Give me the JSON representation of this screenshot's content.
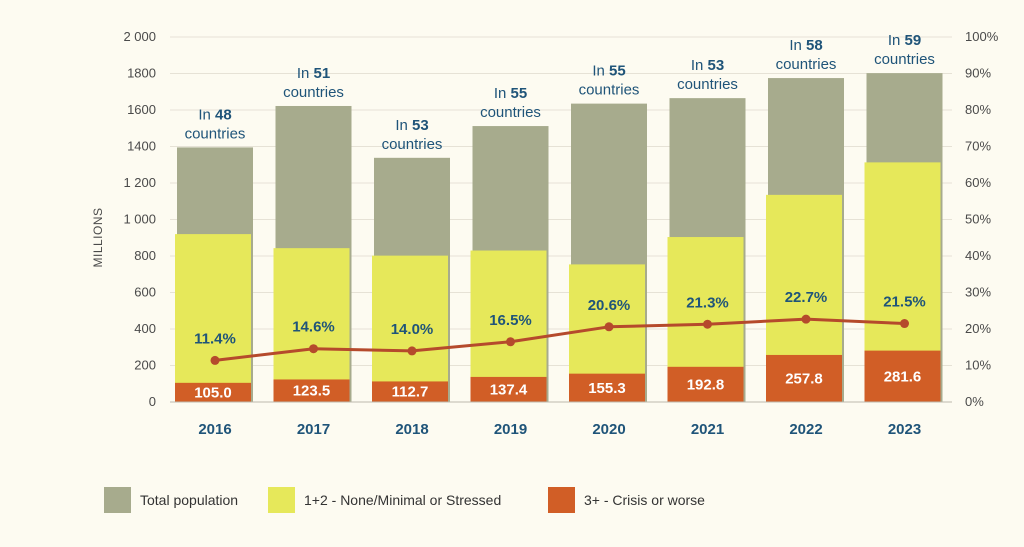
{
  "chart_data": {
    "type": "bar",
    "categories": [
      "2016",
      "2017",
      "2018",
      "2019",
      "2020",
      "2021",
      "2022",
      "2023"
    ],
    "series": [
      {
        "name": "Total population",
        "values": [
          1395,
          1622,
          1338,
          1512,
          1635,
          1665,
          1775,
          1802
        ],
        "color": "#a7ab8d"
      },
      {
        "name": "1+2 - None/Minimal or Stressed",
        "values": [
          920,
          843,
          802,
          830,
          754,
          904,
          1135,
          1313
        ],
        "color": "#e6e85a"
      },
      {
        "name": "3+ - Crisis or worse",
        "values": [
          105.0,
          123.5,
          112.7,
          137.4,
          155.3,
          192.8,
          257.8,
          281.6
        ],
        "color": "#d15e26"
      }
    ],
    "crisis_labels": [
      "105.0",
      "123.5",
      "112.7",
      "137.4",
      "155.3",
      "192.8",
      "257.8",
      "281.6"
    ],
    "percent_series": {
      "values": [
        11.4,
        14.6,
        14.0,
        16.5,
        20.6,
        21.3,
        22.7,
        21.5
      ],
      "labels": [
        "11.4%",
        "14.6%",
        "14.0%",
        "16.5%",
        "20.6%",
        "21.3%",
        "22.7%",
        "21.5%"
      ],
      "color": "#b54a2c"
    },
    "country_annotations": [
      {
        "prefix": "In ",
        "number": "48",
        "suffix": "countries"
      },
      {
        "prefix": "In ",
        "number": "51",
        "suffix": "countries"
      },
      {
        "prefix": "In ",
        "number": "53",
        "suffix": "countries"
      },
      {
        "prefix": "In ",
        "number": "55",
        "suffix": "countries"
      },
      {
        "prefix": "In ",
        "number": "55",
        "suffix": "countries"
      },
      {
        "prefix": "In ",
        "number": "53",
        "suffix": "countries"
      },
      {
        "prefix": "In ",
        "number": "58",
        "suffix": "countries"
      },
      {
        "prefix": "In ",
        "number": "59",
        "suffix": "countries"
      }
    ],
    "y_left": {
      "label": "MILLIONS",
      "range": [
        0,
        2000
      ],
      "ticks": [
        0,
        200,
        400,
        600,
        800,
        1000,
        1200,
        1400,
        1600,
        1800,
        2000
      ],
      "tick_labels": [
        "0",
        "200",
        "400",
        "600",
        "800",
        "1 000",
        "1 200",
        "1400",
        "1600",
        "1800",
        "2 000"
      ]
    },
    "y_right": {
      "range": [
        0,
        100
      ],
      "ticks": [
        0,
        10,
        20,
        30,
        40,
        50,
        60,
        70,
        80,
        90,
        100
      ],
      "tick_labels": [
        "0%",
        "10%",
        "20%",
        "30%",
        "40%",
        "50%",
        "60%",
        "70%",
        "80%",
        "90%",
        "100%"
      ]
    },
    "grid": true,
    "legend": {
      "position": "bottom-left",
      "items": [
        {
          "label": "Total population",
          "color": "#a7ab8d"
        },
        {
          "label": "1+2 - None/Minimal or Stressed",
          "color": "#e6e85a"
        },
        {
          "label": "3+ - Crisis or worse",
          "color": "#d15e26"
        }
      ]
    }
  }
}
